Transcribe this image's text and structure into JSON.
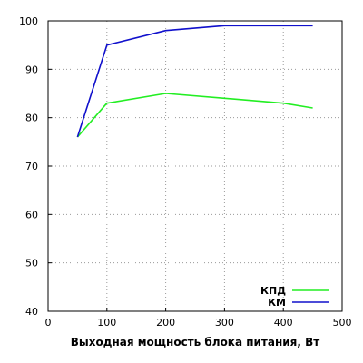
{
  "chart_data": {
    "type": "line",
    "title": "",
    "xlabel": "Выходная мощность блока питания, Вт",
    "ylabel": "",
    "xlim": [
      0,
      500
    ],
    "ylim": [
      40,
      100
    ],
    "xticks": [
      0,
      100,
      200,
      300,
      400,
      500
    ],
    "yticks": [
      40,
      50,
      60,
      70,
      80,
      90,
      100
    ],
    "grid": true,
    "legend_position": "bottom-right",
    "series": [
      {
        "name": "КПД",
        "color": "#22ee22",
        "x": [
          50,
          100,
          200,
          300,
          400,
          450
        ],
        "y": [
          76,
          83,
          85,
          84,
          83,
          82
        ]
      },
      {
        "name": "КМ",
        "color": "#1010cc",
        "x": [
          50,
          100,
          200,
          300,
          400,
          450
        ],
        "y": [
          76,
          95,
          98,
          99,
          99,
          99
        ]
      }
    ]
  }
}
